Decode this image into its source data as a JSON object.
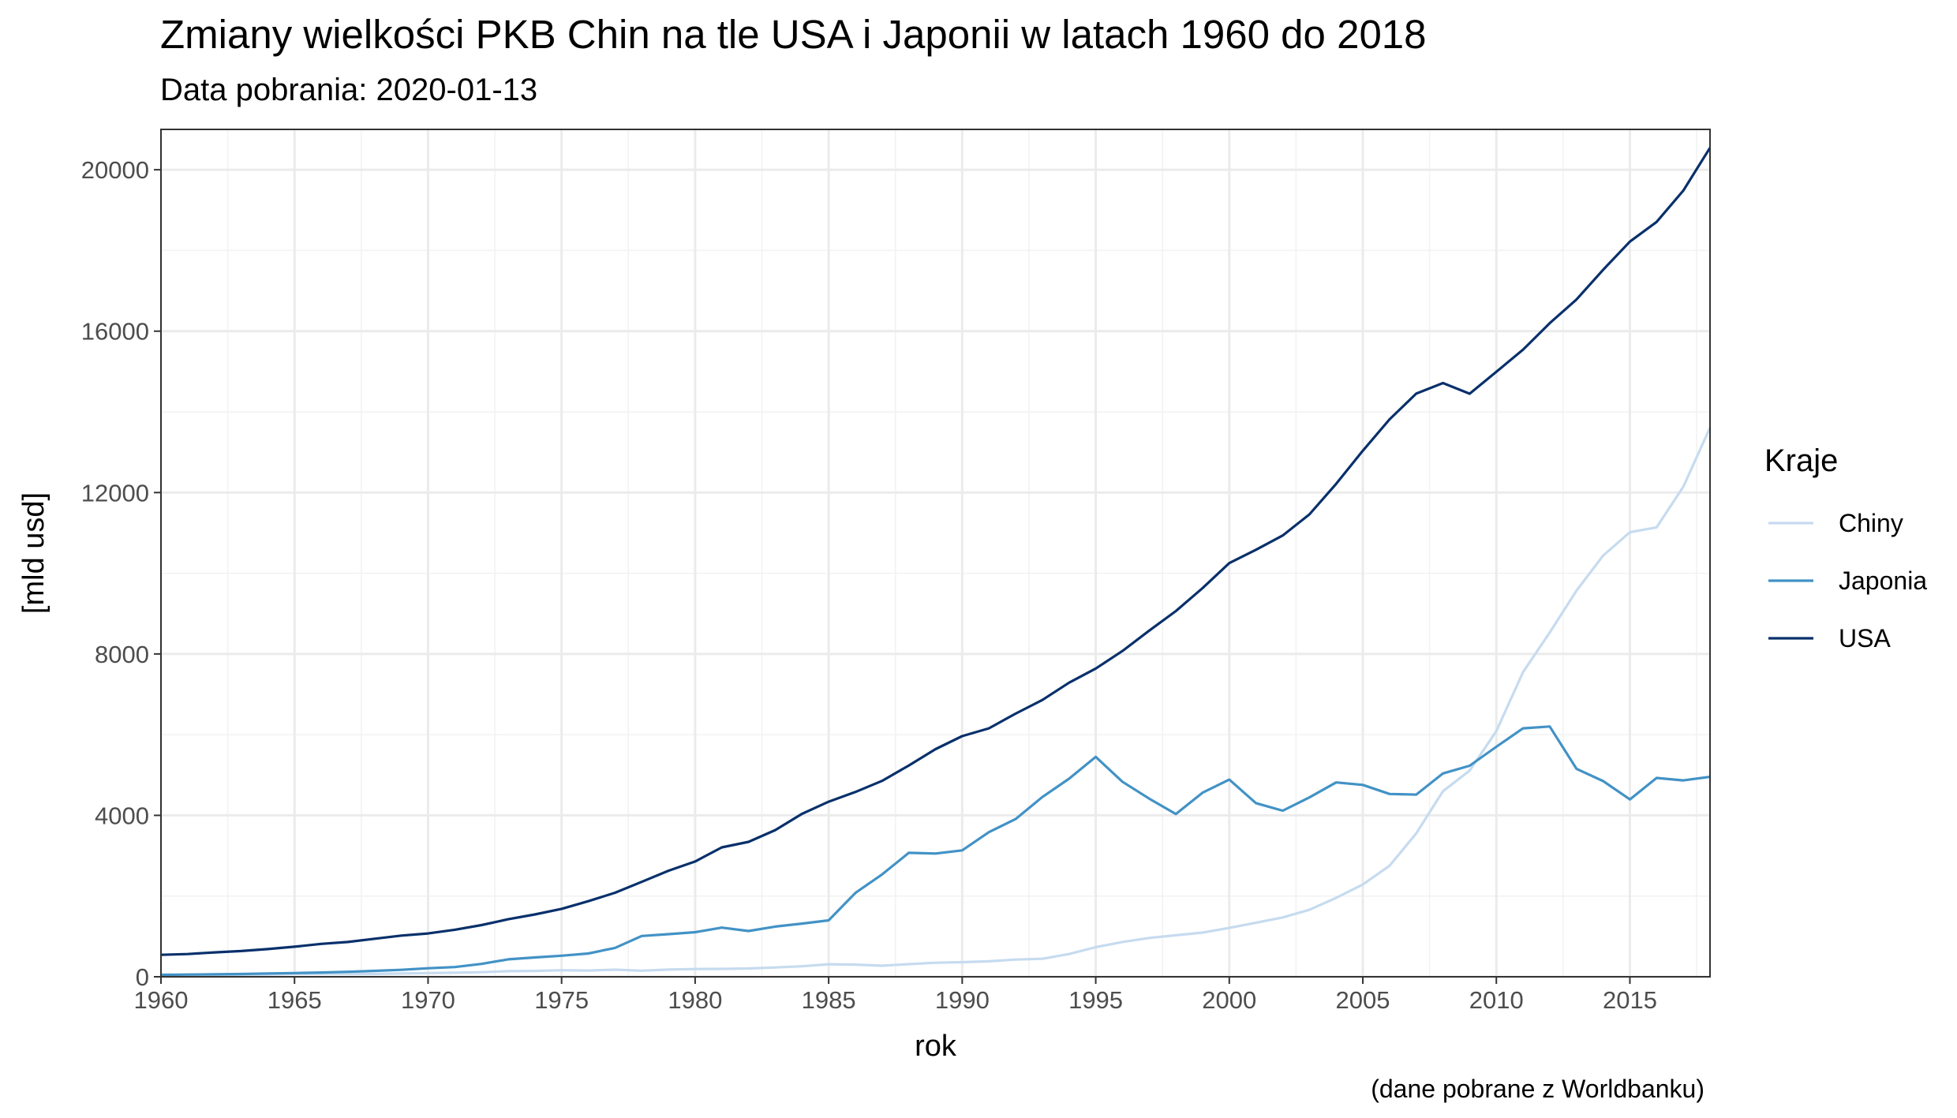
{
  "chart_data": {
    "type": "line",
    "title": "Zmiany wielkości PKB Chin na tle USA i Japonii w latach 1960  do  2018",
    "subtitle": "Data pobrania: 2020-01-13",
    "caption": "(dane pobrane z Worldbanku)",
    "xlabel": "rok",
    "ylabel": "[mld usd]",
    "xlim": [
      1960,
      2018
    ],
    "ylim": [
      0,
      21000
    ],
    "xticks": [
      1960,
      1965,
      1970,
      1975,
      1980,
      1985,
      1990,
      1995,
      2000,
      2005,
      2010,
      2015
    ],
    "yticks": [
      0,
      4000,
      8000,
      12000,
      16000,
      20000
    ],
    "grid": true,
    "legend": {
      "title": "Kraje",
      "position": "right"
    },
    "x": [
      1960,
      1961,
      1962,
      1963,
      1964,
      1965,
      1966,
      1967,
      1968,
      1969,
      1970,
      1971,
      1972,
      1973,
      1974,
      1975,
      1976,
      1977,
      1978,
      1979,
      1980,
      1981,
      1982,
      1983,
      1984,
      1985,
      1986,
      1987,
      1988,
      1989,
      1990,
      1991,
      1992,
      1993,
      1994,
      1995,
      1996,
      1997,
      1998,
      1999,
      2000,
      2001,
      2002,
      2003,
      2004,
      2005,
      2006,
      2007,
      2008,
      2009,
      2010,
      2011,
      2012,
      2013,
      2014,
      2015,
      2016,
      2017,
      2018
    ],
    "series": [
      {
        "name": "Chiny",
        "color": "#c6dbef",
        "values": [
          60,
          50,
          47,
          50,
          59,
          70,
          76,
          73,
          71,
          80,
          92,
          100,
          114,
          139,
          144,
          163,
          154,
          175,
          150,
          178,
          191,
          196,
          205,
          231,
          260,
          310,
          301,
          274,
          312,
          348,
          361,
          383,
          427,
          445,
          564,
          734,
          863,
          962,
          1029,
          1094,
          1211,
          1339,
          1471,
          1660,
          1955,
          2286,
          2752,
          3552,
          4598,
          5110,
          6087,
          7552,
          8532,
          9570,
          10439,
          11016,
          11138,
          12144,
          13608
        ]
      },
      {
        "name": "Japonia",
        "color": "#4292c6",
        "values": [
          44,
          54,
          61,
          69,
          82,
          91,
          106,
          124,
          147,
          172,
          212,
          240,
          318,
          432,
          480,
          522,
          577,
          716,
          1010,
          1056,
          1105,
          1218,
          1135,
          1243,
          1318,
          1398,
          2079,
          2536,
          3072,
          3054,
          3133,
          3585,
          3909,
          4454,
          4908,
          5449,
          4833,
          4415,
          4032,
          4562,
          4887,
          4304,
          4115,
          4445,
          4815,
          4755,
          4530,
          4515,
          5038,
          5231,
          5700,
          6157,
          6203,
          5155,
          4850,
          4395,
          4927,
          4867,
          4955
        ]
      },
      {
        "name": "USA",
        "color": "#08306b",
        "values": [
          543,
          563,
          605,
          638,
          686,
          744,
          815,
          862,
          943,
          1020,
          1073,
          1165,
          1280,
          1425,
          1545,
          1684,
          1873,
          2082,
          2352,
          2627,
          2857,
          3207,
          3344,
          3634,
          4038,
          4339,
          4580,
          4855,
          5236,
          5642,
          5963,
          6158,
          6520,
          6859,
          7287,
          7640,
          8073,
          8578,
          9063,
          9631,
          10252,
          10582,
          10936,
          11458,
          12214,
          13037,
          13815,
          14452,
          14713,
          14449,
          14992,
          15543,
          16197,
          16785,
          17522,
          18219,
          18707,
          19485,
          20544
        ]
      }
    ]
  }
}
